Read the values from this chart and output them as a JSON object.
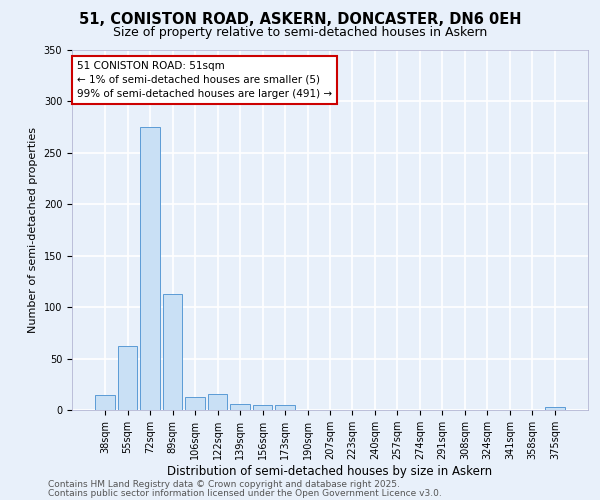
{
  "title1": "51, CONISTON ROAD, ASKERN, DONCASTER, DN6 0EH",
  "title2": "Size of property relative to semi-detached houses in Askern",
  "xlabel": "Distribution of semi-detached houses by size in Askern",
  "ylabel": "Number of semi-detached properties",
  "categories": [
    "38sqm",
    "55sqm",
    "72sqm",
    "89sqm",
    "106sqm",
    "122sqm",
    "139sqm",
    "156sqm",
    "173sqm",
    "190sqm",
    "207sqm",
    "223sqm",
    "240sqm",
    "257sqm",
    "274sqm",
    "291sqm",
    "308sqm",
    "324sqm",
    "341sqm",
    "358sqm",
    "375sqm"
  ],
  "values": [
    15,
    62,
    275,
    113,
    13,
    16,
    6,
    5,
    5,
    0,
    0,
    0,
    0,
    0,
    0,
    0,
    0,
    0,
    0,
    0,
    3
  ],
  "bar_color": "#c9e0f5",
  "bar_edge_color": "#5b9bd5",
  "background_color": "#e8f0fa",
  "grid_color": "#ffffff",
  "annotation_text": "51 CONISTON ROAD: 51sqm\n← 1% of semi-detached houses are smaller (5)\n99% of semi-detached houses are larger (491) →",
  "annotation_box_color": "#ffffff",
  "annotation_edge_color": "#cc0000",
  "ylim": [
    0,
    350
  ],
  "yticks": [
    0,
    50,
    100,
    150,
    200,
    250,
    300,
    350
  ],
  "footer1": "Contains HM Land Registry data © Crown copyright and database right 2025.",
  "footer2": "Contains public sector information licensed under the Open Government Licence v3.0.",
  "title1_fontsize": 10.5,
  "title2_fontsize": 9,
  "xlabel_fontsize": 8.5,
  "ylabel_fontsize": 8,
  "tick_fontsize": 7,
  "footer_fontsize": 6.5,
  "annotation_fontsize": 7.5
}
